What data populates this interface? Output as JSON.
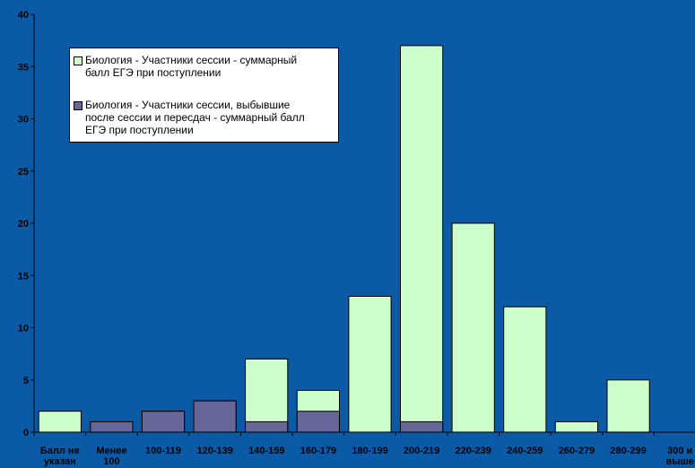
{
  "chart_data": {
    "type": "bar",
    "title": "",
    "xlabel": "",
    "ylabel": "",
    "ylim": [
      0,
      40
    ],
    "yticks": [
      0,
      5,
      10,
      15,
      20,
      25,
      30,
      35,
      40
    ],
    "grid": false,
    "legend_position": "top-left",
    "categories": [
      "Балл не указан",
      "Менее 100",
      "100-119",
      "120-139",
      "140-159",
      "160-179",
      "180-199",
      "200-219",
      "220-239",
      "240-259",
      "260-279",
      "280-299",
      "300 и выше"
    ],
    "category_lines": [
      [
        "Балл не",
        "указан"
      ],
      [
        "Менее",
        "100"
      ],
      [
        "100-119"
      ],
      [
        "120-139"
      ],
      [
        "140-159"
      ],
      [
        "160-179"
      ],
      [
        "180-199"
      ],
      [
        "200-219"
      ],
      [
        "220-239"
      ],
      [
        "240-259"
      ],
      [
        "260-279"
      ],
      [
        "280-299"
      ],
      [
        "300 и",
        "выше"
      ]
    ],
    "series": [
      {
        "name": "Биология - Участники сессии - суммарный балл ЕГЭ при поступлении",
        "legend_lines": [
          "Биология - Участники сессии - суммарный",
          "балл ЕГЭ при поступлении"
        ],
        "color": "#ccffcc",
        "values": [
          2,
          0,
          2,
          3,
          7,
          4,
          13,
          37,
          20,
          12,
          1,
          5,
          0
        ]
      },
      {
        "name": "Биология - Участники сессии, выбывшие после сессии и пересдач - суммарный балл ЕГЭ при поступлении",
        "legend_lines": [
          "Биология - Участники сессии, выбывшие",
          "после сессии и пересдач - суммарный балл",
          "ЕГЭ при поступлении"
        ],
        "color": "#666699",
        "values": [
          0,
          1,
          2,
          3,
          1,
          2,
          0,
          1,
          0,
          0,
          0,
          0,
          0
        ]
      }
    ]
  },
  "colors": {
    "background": "#0a5aa6",
    "axis": "#000000",
    "bar_outline": "#000000"
  }
}
